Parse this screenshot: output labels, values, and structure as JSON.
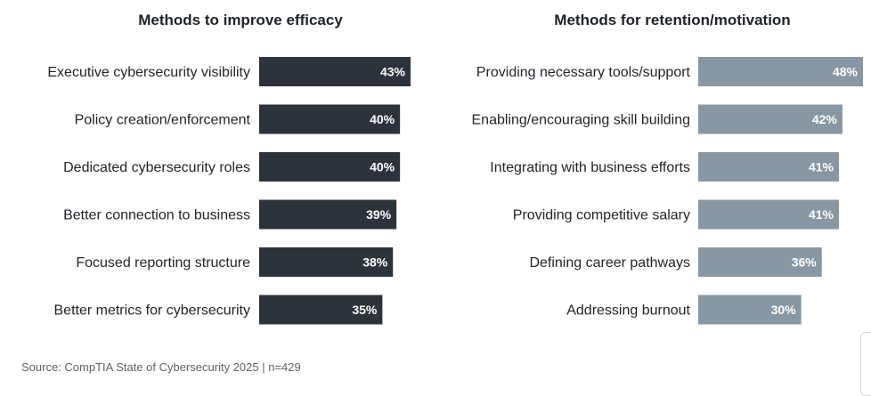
{
  "chart_data": [
    {
      "type": "bar",
      "orientation": "horizontal",
      "title": "Methods to improve efficacy",
      "categories": [
        "Executive cybersecurity visibility",
        "Policy creation/enforcement",
        "Dedicated cybersecurity roles",
        "Better connection to business",
        "Focused reporting structure",
        "Better metrics for cybersecurity"
      ],
      "values": [
        43,
        40,
        40,
        39,
        38,
        35
      ],
      "value_labels": [
        "43%",
        "40%",
        "40%",
        "39%",
        "38%",
        "35%"
      ],
      "unit": "%",
      "color": "#2c333a",
      "grid": false
    },
    {
      "type": "bar",
      "orientation": "horizontal",
      "title": "Methods for retention/motivation",
      "categories": [
        "Providing necessary tools/support",
        "Enabling/encouraging skill building",
        "Integrating with business efforts",
        "Providing competitive salary",
        "Defining career pathways",
        "Addressing burnout"
      ],
      "values": [
        48,
        42,
        41,
        41,
        36,
        30
      ],
      "value_labels": [
        "48%",
        "42%",
        "41%",
        "41%",
        "36%",
        "30%"
      ],
      "unit": "%",
      "color": "#8797a3",
      "grid": false
    }
  ],
  "footer": {
    "source": "Source: CompTIA State of Cybersecurity 2025 | n=429"
  }
}
